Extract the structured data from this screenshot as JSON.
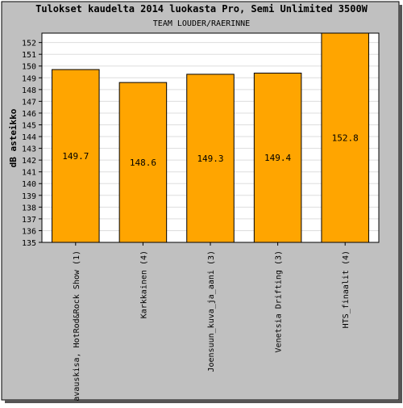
{
  "chart_data": {
    "type": "bar",
    "title": "Tulokset kaudelta 2014 luokasta Pro, Semi Unlimited 3500W",
    "subtitle": "TEAM LOUDER/RAERINNE",
    "ylabel": "dB asteikko",
    "xlabel": "",
    "ylim": [
      135,
      152.8
    ],
    "yticks": [
      135,
      136,
      137,
      138,
      139,
      140,
      141,
      142,
      143,
      144,
      145,
      146,
      147,
      148,
      149,
      150,
      151,
      152
    ],
    "grid": true,
    "categories": [
      "avauskisa, HotRod&Rock Show (1)",
      "Karkkainen (4)",
      "Joensuun_kuva_ja_aani (3)",
      "Venetsia Drifting (3)",
      "HTS_finaalit (4)"
    ],
    "values": [
      149.7,
      148.6,
      149.3,
      149.4,
      152.8
    ],
    "value_labels": [
      "149.7",
      "148.6",
      "149.3",
      "149.4",
      "152.8"
    ],
    "colors": {
      "frame_bg": "#c0c0c0",
      "plot_bg": "#ffffff",
      "bar_fill": "#ffa500",
      "bar_stroke": "#000000",
      "grid": "#dddddd"
    }
  }
}
